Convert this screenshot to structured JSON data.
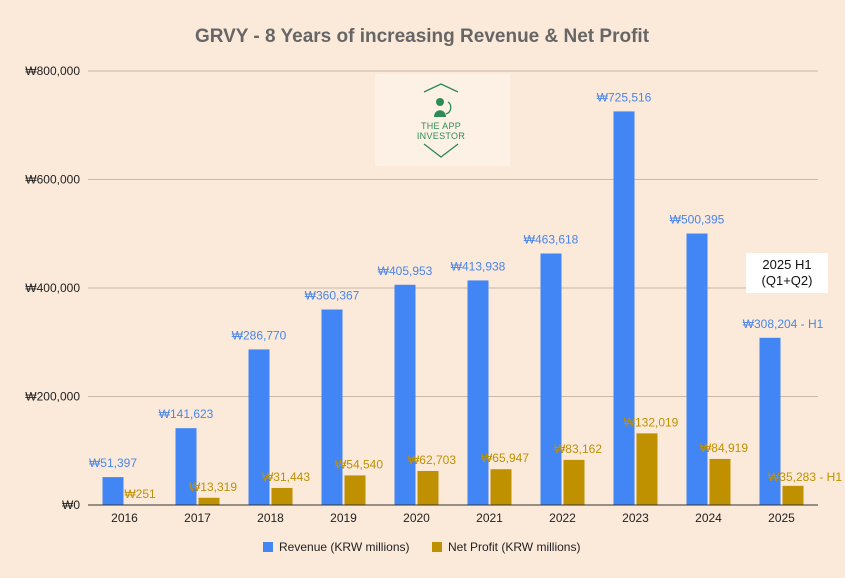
{
  "chart_data": {
    "type": "bar",
    "title": "GRVY - 8 Years of increasing Revenue & Net Profit",
    "categories": [
      "2016",
      "2017",
      "2018",
      "2019",
      "2020",
      "2021",
      "2022",
      "2023",
      "2024",
      "2025"
    ],
    "ylim": [
      0,
      800000
    ],
    "yticks": [
      0,
      200000,
      400000,
      600000,
      800000
    ],
    "ytick_labels": [
      "₩0",
      "₩200,000",
      "₩400,000",
      "₩600,000",
      "₩800,000"
    ],
    "grid": true,
    "legend_position": "bottom",
    "series": [
      {
        "name": "Revenue (KRW millions)",
        "color": "#4285f4",
        "label_color": "#4a86e8",
        "values": [
          51397,
          141623,
          286770,
          360367,
          405953,
          413938,
          463618,
          725516,
          500395,
          308204
        ],
        "labels": [
          "₩51,397",
          "₩141,623",
          "₩286,770",
          "₩360,367",
          "₩405,953",
          "₩413,938",
          "₩463,618",
          "₩725,516",
          "₩500,395",
          "₩308,204 - H1"
        ]
      },
      {
        "name": "Net Profit (KRW millions)",
        "color": "#bf9000",
        "label_color": "#bf9000",
        "values": [
          251,
          13319,
          31443,
          54540,
          62703,
          65947,
          83162,
          132019,
          84919,
          35283
        ],
        "labels": [
          "₩251",
          "₩13,319",
          "₩31,443",
          "₩54,540",
          "₩62,703",
          "₩65,947",
          "₩83,162",
          "₩132,019",
          "₩84,919",
          "₩35,283 - H1"
        ]
      }
    ],
    "annotations": [
      {
        "text_line1": "2025 H1",
        "text_line2": "(Q1+Q2)"
      }
    ]
  },
  "logo": {
    "line1": "THE APP",
    "line2": "INVESTOR",
    "icon": "monkey-icon"
  }
}
